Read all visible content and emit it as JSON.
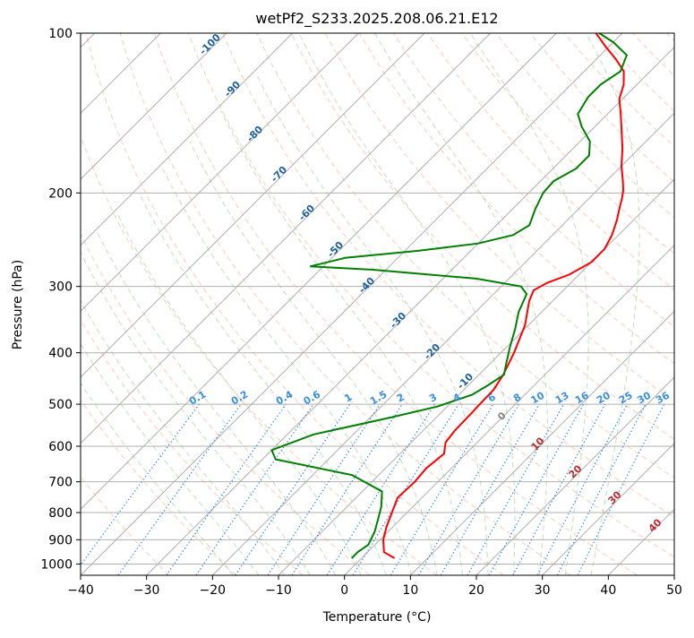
{
  "chart_data": {
    "type": "line",
    "title": "wetPf2_S233.2025.208.06.21.E12",
    "xlabel": "Temperature (°C)",
    "ylabel": "Pressure (hPa)",
    "xlim": [
      -40,
      50
    ],
    "ylim": [
      1050,
      100
    ],
    "yscale": "log",
    "x_ticks": [
      "−40",
      "−30",
      "−20",
      "−10",
      "0",
      "10",
      "20",
      "30",
      "40",
      "50"
    ],
    "y_ticks": [
      "100",
      "200",
      "300",
      "400",
      "500",
      "600",
      "700",
      "800",
      "900",
      "1000"
    ],
    "grid": true,
    "skew": "skew-T log-P",
    "series": [
      {
        "color": "#ff0000",
        "points": [
          [
            5,
            975
          ],
          [
            2.5,
            950
          ],
          [
            0.5,
            900
          ],
          [
            -1,
            850
          ],
          [
            -2.3,
            800
          ],
          [
            -3.7,
            750
          ],
          [
            -3.5,
            700
          ],
          [
            -3.8,
            660
          ],
          [
            -3.3,
            620
          ],
          [
            -4.8,
            590
          ],
          [
            -5.2,
            560
          ],
          [
            -5.3,
            520
          ],
          [
            -5.4,
            500
          ],
          [
            -5.5,
            470
          ],
          [
            -6.3,
            440
          ],
          [
            -8.0,
            400
          ],
          [
            -10.5,
            355
          ],
          [
            -13.5,
            320
          ],
          [
            -14.5,
            305
          ],
          [
            -13.5,
            295
          ],
          [
            -11.5,
            285
          ],
          [
            -10.0,
            270
          ],
          [
            -10.0,
            255
          ],
          [
            -11.0,
            240
          ],
          [
            -12.5,
            225
          ],
          [
            -14.0,
            213
          ],
          [
            -15.0,
            205
          ],
          [
            -16.0,
            198
          ],
          [
            -17.5,
            190
          ],
          [
            -20.0,
            178
          ],
          [
            -22.5,
            165
          ],
          [
            -25.5,
            152
          ],
          [
            -28.0,
            142
          ],
          [
            -30.5,
            133
          ],
          [
            -32.0,
            125
          ],
          [
            -34.0,
            118
          ],
          [
            -37.0,
            112
          ],
          [
            -40.5,
            106
          ],
          [
            -44.0,
            100
          ]
        ]
      },
      {
        "color": "#008000",
        "points": [
          [
            -1.5,
            975
          ],
          [
            -1.5,
            950
          ],
          [
            -1,
            920
          ],
          [
            -1.5,
            895
          ],
          [
            -2.0,
            870
          ],
          [
            -3.5,
            820
          ],
          [
            -4.8,
            780
          ],
          [
            -7.0,
            730
          ],
          [
            -14.0,
            680
          ],
          [
            -28.0,
            635
          ],
          [
            -30.0,
            610
          ],
          [
            -26.0,
            570
          ],
          [
            -17.0,
            530
          ],
          [
            -11.5,
            505
          ],
          [
            -8.0,
            480
          ],
          [
            -7.0,
            460
          ],
          [
            -6.2,
            440
          ],
          [
            -7.5,
            420
          ],
          [
            -9.5,
            390
          ],
          [
            -11.5,
            360
          ],
          [
            -13.5,
            335
          ],
          [
            -15.0,
            310
          ],
          [
            -17.0,
            300
          ],
          [
            -25.0,
            290
          ],
          [
            -42.0,
            279
          ],
          [
            -52.0,
            275
          ],
          [
            -48.0,
            265
          ],
          [
            -38.0,
            257
          ],
          [
            -30.0,
            249
          ],
          [
            -26.0,
            240
          ],
          [
            -25.0,
            230
          ],
          [
            -26.5,
            215
          ],
          [
            -27.8,
            200
          ],
          [
            -28.0,
            190
          ],
          [
            -26.5,
            180
          ],
          [
            -26.5,
            170
          ],
          [
            -28.5,
            160
          ],
          [
            -32.0,
            150
          ],
          [
            -34.5,
            142
          ],
          [
            -35.5,
            132
          ],
          [
            -35.5,
            125
          ],
          [
            -34.5,
            118
          ],
          [
            -36.0,
            110
          ],
          [
            -40.0,
            104
          ],
          [
            -43.5,
            100
          ]
        ]
      }
    ],
    "dry_adiabat_colors": "#e0c9b0",
    "moist_adiabat_color": "#9fd0a0",
    "isotherm_color": "#b0b0b0",
    "mixing_ratio_color": "#3a8fe0",
    "annotations": {
      "mixing_ratio_labels": [
        "0.1",
        "0.2",
        "0.4",
        "0.6",
        "1",
        "1.5",
        "2",
        "3",
        "4",
        "6",
        "8",
        "10",
        "13",
        "16",
        "20",
        "25",
        "30",
        "36"
      ],
      "dark_blue_isotherm_labels": [
        "-100",
        "-90",
        "-80",
        "-70",
        "-60",
        "-50",
        "-40",
        "-30",
        "-20",
        "-10"
      ],
      "red_isotherm_labels": [
        "10",
        "20",
        "30",
        "40"
      ],
      "zero_label": "0"
    }
  }
}
